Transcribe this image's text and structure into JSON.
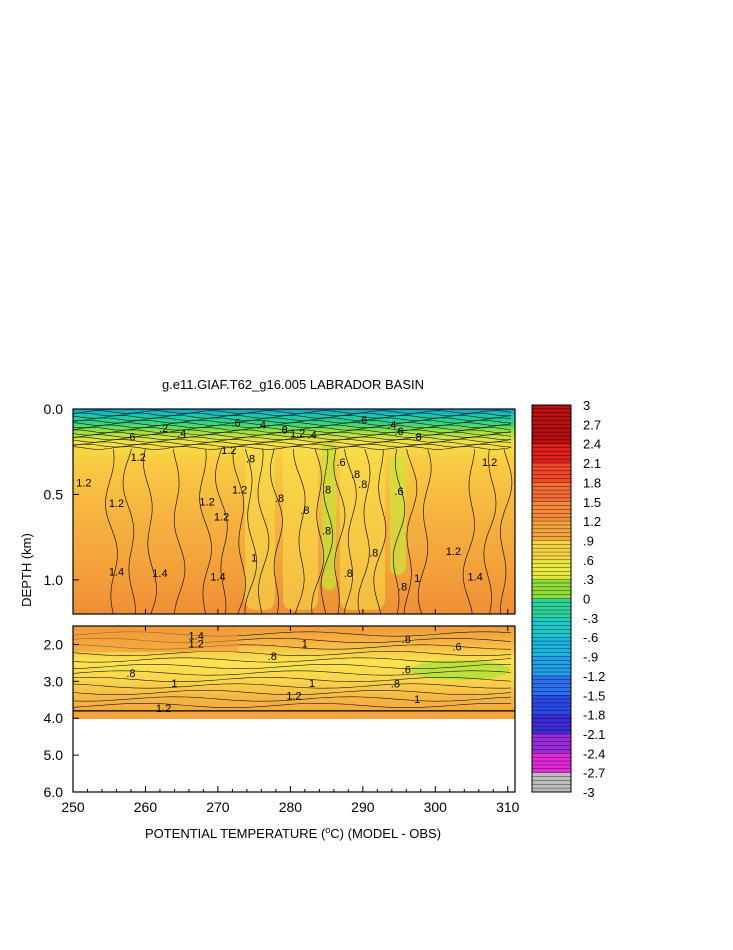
{
  "chart_data": {
    "type": "heatmap",
    "title": "g.e11.GIAF.T62_g16.005 LABRADOR BASIN",
    "xlabel": "POTENTIAL TEMPERATURE (",
    "xlabel_unit": "o",
    "xlabel_tail": "C) (MODEL - OBS)",
    "ylabel": "DEPTH (km)",
    "x_ticks": [
      "250",
      "260",
      "270",
      "280",
      "290",
      "300",
      "310"
    ],
    "x_range": [
      250,
      311
    ],
    "upper_panel": {
      "ylim": [
        0.0,
        1.2
      ],
      "y_ticks": [
        "0.0",
        "0.5",
        "1.0"
      ],
      "y_tick_values": [
        0.0,
        0.5,
        1.0
      ]
    },
    "lower_panel": {
      "ylim": [
        1.5,
        6.0
      ],
      "y_ticks": [
        "2.0",
        "3.0",
        "4.0",
        "5.0",
        "6.0"
      ],
      "y_tick_values": [
        2.0,
        3.0,
        4.0,
        5.0,
        6.0
      ],
      "data_bottom_km": 3.8
    },
    "colorbar": {
      "labels": [
        "3",
        "2.7",
        "2.4",
        "2.1",
        "1.8",
        "1.5",
        "1.2",
        ".9",
        ".6",
        ".3",
        "0",
        "-.3",
        "-.6",
        "-.9",
        "-1.2",
        "-1.5",
        "-1.8",
        "-2.1",
        "-2.4",
        "-2.7",
        "-3"
      ],
      "values": [
        3,
        2.7,
        2.4,
        2.1,
        1.8,
        1.5,
        1.2,
        0.9,
        0.6,
        0.3,
        0,
        -0.3,
        -0.6,
        -0.9,
        -1.2,
        -1.5,
        -1.8,
        -2.1,
        -2.4,
        -2.7,
        -3
      ]
    },
    "contour_labels": [
      {
        "text": "1.2",
        "x": 251.5,
        "y": 0.43
      },
      {
        "text": "1.2",
        "x": 256,
        "y": 0.55
      },
      {
        "text": "1.4",
        "x": 256,
        "y": 0.95
      },
      {
        "text": "1.4",
        "x": 262,
        "y": 0.96
      },
      {
        "text": "1.2",
        "x": 259,
        "y": 0.28
      },
      {
        "text": "1.2",
        "x": 268.5,
        "y": 0.54
      },
      {
        "text": "1.2",
        "x": 270.5,
        "y": 0.63
      },
      {
        "text": "1.2",
        "x": 273,
        "y": 0.47
      },
      {
        "text": "1.4",
        "x": 270,
        "y": 0.98
      },
      {
        "text": "1.2",
        "x": 271.5,
        "y": 0.24
      },
      {
        "text": ".8",
        "x": 274.5,
        "y": 0.29
      },
      {
        "text": ".8",
        "x": 278.5,
        "y": 0.52
      },
      {
        "text": "1",
        "x": 275,
        "y": 0.87
      },
      {
        "text": ".8",
        "x": 282,
        "y": 0.59
      },
      {
        "text": ".8",
        "x": 285,
        "y": 0.47
      },
      {
        "text": ".8",
        "x": 285,
        "y": 0.71
      },
      {
        "text": ".6",
        "x": 287,
        "y": 0.31
      },
      {
        "text": ".8",
        "x": 289,
        "y": 0.38
      },
      {
        "text": ".8",
        "x": 288,
        "y": 0.96
      },
      {
        "text": ".8",
        "x": 290,
        "y": 0.44
      },
      {
        "text": ".8",
        "x": 291.5,
        "y": 0.84
      },
      {
        "text": ".6",
        "x": 295,
        "y": 0.48
      },
      {
        "text": ".8",
        "x": 295.5,
        "y": 1.04
      },
      {
        "text": "1",
        "x": 297.5,
        "y": 0.99
      },
      {
        "text": "1.2",
        "x": 302.5,
        "y": 0.83
      },
      {
        "text": "1.4",
        "x": 305.5,
        "y": 0.98
      },
      {
        "text": "1.2",
        "x": 307.5,
        "y": 0.31
      },
      {
        "text": ".6",
        "x": 258,
        "y": 0.16
      },
      {
        "text": ".2",
        "x": 262.5,
        "y": 0.11
      },
      {
        "text": ".4",
        "x": 265,
        "y": 0.14
      },
      {
        "text": ".6",
        "x": 272.5,
        "y": 0.08
      },
      {
        "text": ".4",
        "x": 276,
        "y": 0.09
      },
      {
        "text": ".8",
        "x": 279,
        "y": 0.12
      },
      {
        "text": "1.2",
        "x": 281,
        "y": 0.14
      },
      {
        "text": ".4",
        "x": 283,
        "y": 0.15
      },
      {
        "text": ".6",
        "x": 290,
        "y": 0.06
      },
      {
        "text": ".4",
        "x": 294,
        "y": 0.09
      },
      {
        "text": ".6",
        "x": 295,
        "y": 0.13
      },
      {
        "text": ".8",
        "x": 297.5,
        "y": 0.16
      },
      {
        "text": "1.2",
        "x": 267,
        "y": 1.98
      },
      {
        "text": "1.4",
        "x": 267,
        "y": 1.76
      },
      {
        "text": "1",
        "x": 282,
        "y": 1.98
      },
      {
        "text": ".8",
        "x": 277.5,
        "y": 2.32
      },
      {
        "text": ".8",
        "x": 296,
        "y": 1.85
      },
      {
        "text": ".6",
        "x": 303,
        "y": 2.06
      },
      {
        "text": ".6",
        "x": 296,
        "y": 2.68
      },
      {
        "text": ".8",
        "x": 258,
        "y": 2.78
      },
      {
        "text": "1",
        "x": 264,
        "y": 3.05
      },
      {
        "text": "1",
        "x": 283,
        "y": 3.05
      },
      {
        "text": ".8",
        "x": 294.5,
        "y": 3.06
      },
      {
        "text": "1.2",
        "x": 280.5,
        "y": 3.38
      },
      {
        "text": "1",
        "x": 297.5,
        "y": 3.48
      },
      {
        "text": "1.2",
        "x": 262.5,
        "y": 3.72
      }
    ]
  }
}
